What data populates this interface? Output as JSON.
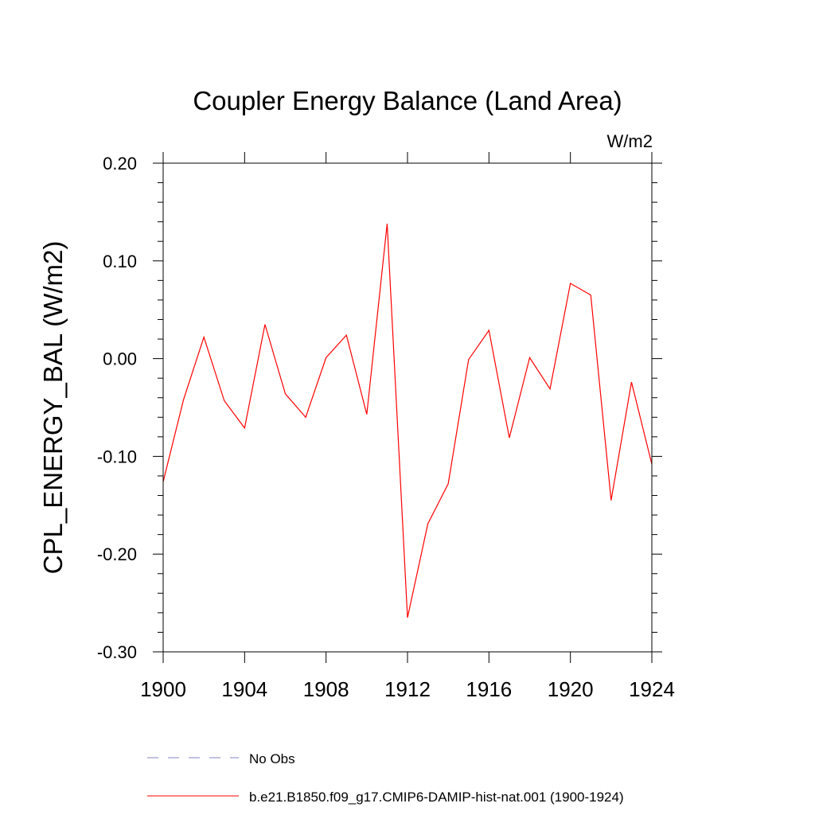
{
  "chart_data": {
    "type": "line",
    "title": "Coupler Energy Balance (Land Area)",
    "units": "W/m2",
    "ylabel": "CPL_ENERGY_BAL  (W/m2)",
    "xlabel": "",
    "xlim": [
      1900,
      1924
    ],
    "ylim": [
      -0.3,
      0.2
    ],
    "x_ticks": [
      "1900",
      "1904",
      "1908",
      "1912",
      "1916",
      "1920",
      "1924"
    ],
    "y_ticks": [
      "0.20",
      "0.10",
      "0.00",
      "-0.10",
      "-0.20",
      "-0.30"
    ],
    "grid": false,
    "legend_position": "bottom",
    "x": [
      1900,
      1901,
      1902,
      1903,
      1904,
      1905,
      1906,
      1907,
      1908,
      1909,
      1910,
      1911,
      1912,
      1913,
      1914,
      1915,
      1916,
      1917,
      1918,
      1919,
      1920,
      1921,
      1922,
      1923,
      1924
    ],
    "series": [
      {
        "name": "b.e21.B1850.f09_g17.CMIP6-DAMIP-hist-nat.001 (1900-1924)",
        "color": "#ff0000",
        "style": "solid",
        "values": [
          -0.126,
          -0.042,
          0.022,
          -0.043,
          -0.071,
          0.035,
          -0.036,
          -0.06,
          0.001,
          0.024,
          -0.057,
          0.138,
          -0.265,
          -0.169,
          -0.128,
          -0.001,
          0.029,
          -0.081,
          0.001,
          -0.031,
          0.077,
          0.065,
          -0.145,
          -0.024,
          -0.108
        ]
      }
    ],
    "legend": [
      {
        "label": "No Obs",
        "color": "#8080c0",
        "style": "dashed"
      },
      {
        "label": "b.e21.B1850.f09_g17.CMIP6-DAMIP-hist-nat.001 (1900-1924)",
        "color": "#ff0000",
        "style": "solid"
      }
    ]
  }
}
